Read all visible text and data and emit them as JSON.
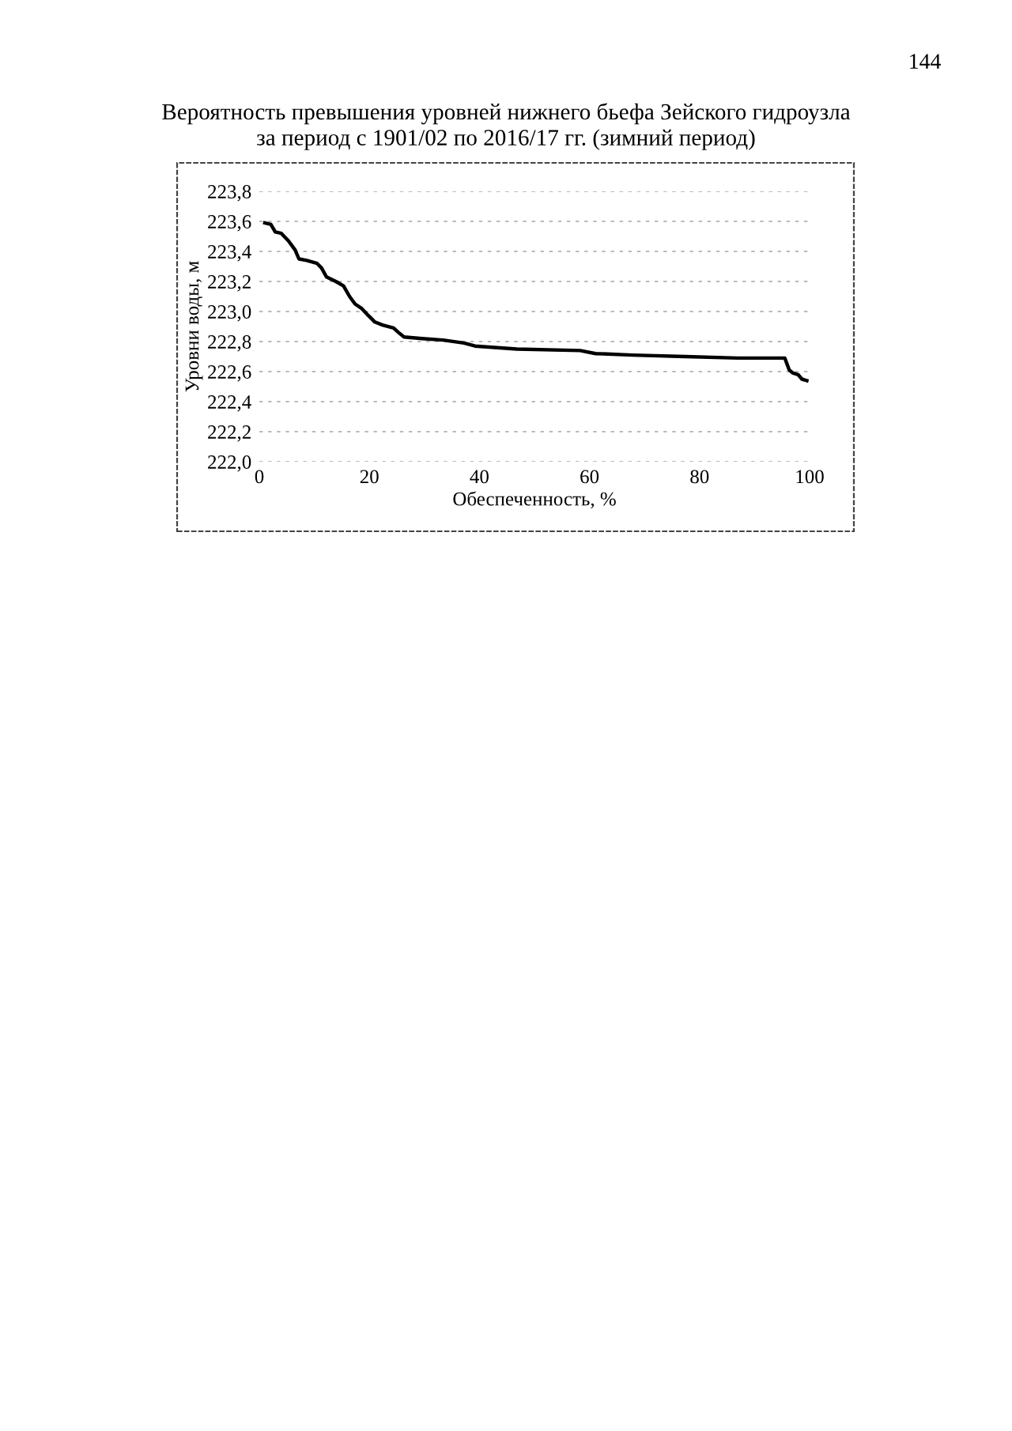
{
  "chart_data": {
    "type": "line",
    "title": "Вероятность превышения уровней нижнего бьефа Зейского гидроузла\nза период с 1901/02 по 2016/17 гг. (зимний период)",
    "xlabel": "Обеспеченность, %",
    "ylabel": "Уровни воды, м",
    "annotations": [
      "144"
    ],
    "series": [
      {
        "color": "#000000",
        "x": [
          1,
          2.1,
          2.9,
          4.0,
          5.3,
          6.5,
          7.2,
          8.6,
          10.5,
          11.3,
          12.2,
          13.9,
          15.3,
          16.4,
          17.4,
          18.6,
          19.9,
          21.0,
          22.4,
          24.4,
          25.3,
          26.3,
          29.6,
          33.4,
          37.2,
          39.2,
          46.8,
          58.3,
          61.1,
          67.8,
          77.4,
          86.9,
          95.5,
          96.3,
          97.0,
          97.9,
          98.6,
          99.5
        ],
        "values": [
          223.59,
          223.58,
          223.53,
          223.52,
          223.47,
          223.41,
          223.35,
          223.34,
          223.32,
          223.29,
          223.23,
          223.2,
          223.17,
          223.1,
          223.05,
          223.02,
          222.97,
          222.93,
          222.91,
          222.89,
          222.86,
          222.83,
          222.82,
          222.81,
          222.79,
          222.77,
          222.75,
          222.74,
          222.72,
          222.71,
          222.7,
          222.69,
          222.69,
          222.61,
          222.59,
          222.58,
          222.55,
          222.54
        ]
      }
    ],
    "xlim": [
      0,
      100
    ],
    "xticks": [
      0,
      20,
      40,
      60,
      80,
      100
    ],
    "ylim": [
      222.0,
      223.8
    ],
    "yticks": [
      {
        "value": 222.0,
        "label": "222,0"
      },
      {
        "value": 222.2,
        "label": "222,2"
      },
      {
        "value": 222.4,
        "label": "222,4"
      },
      {
        "value": 222.6,
        "label": "222,6"
      },
      {
        "value": 222.8,
        "label": "222,8"
      },
      {
        "value": 223.0,
        "label": "223,0"
      },
      {
        "value": 223.2,
        "label": "223,2"
      },
      {
        "value": 223.4,
        "label": "223,4"
      },
      {
        "value": 223.6,
        "label": "223,6"
      },
      {
        "value": 223.8,
        "label": "223,8"
      }
    ],
    "grid": "y",
    "marker": "none",
    "line_style": "solid"
  }
}
